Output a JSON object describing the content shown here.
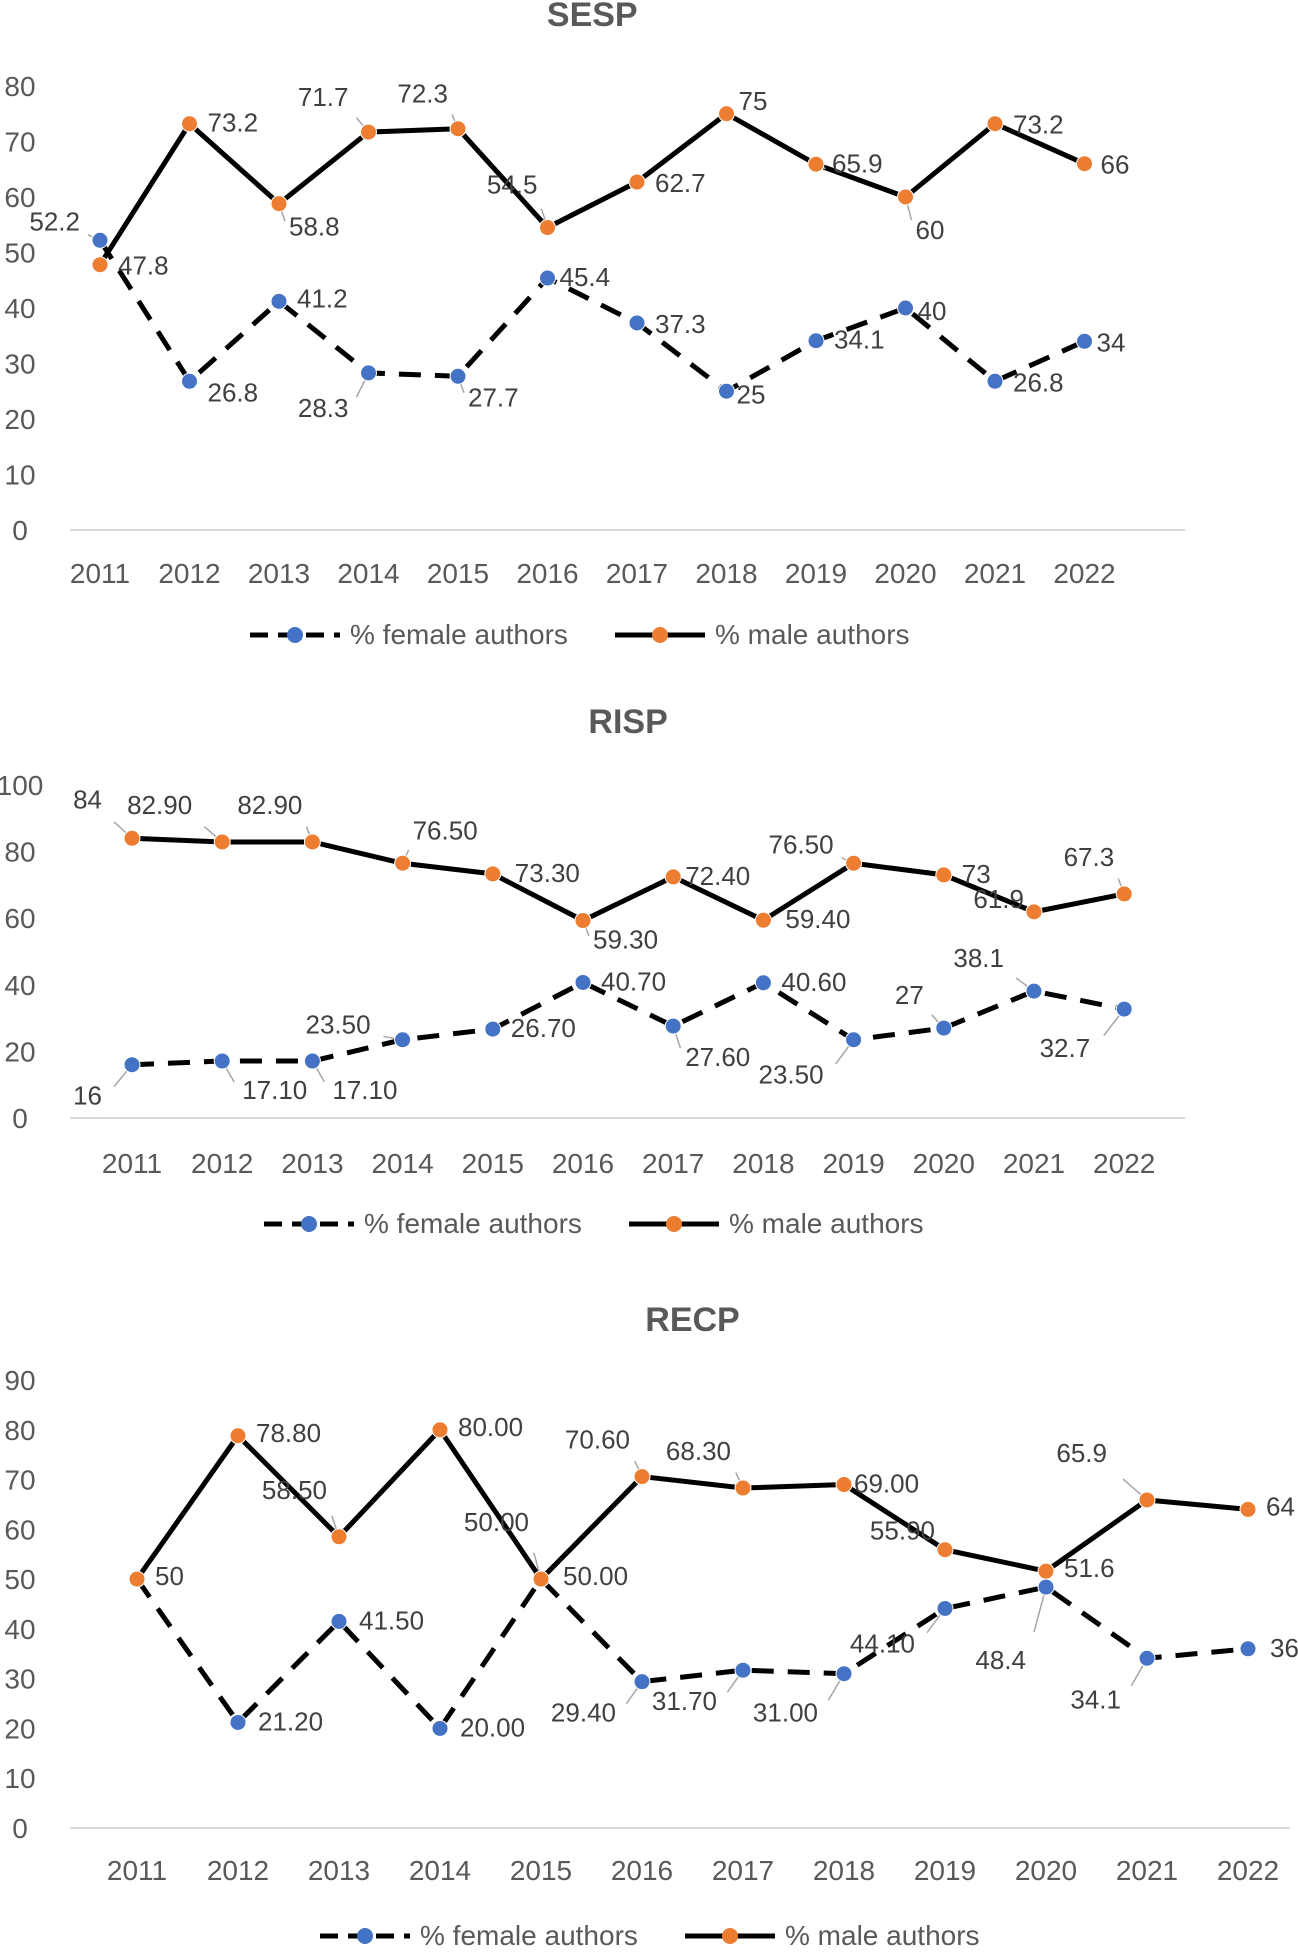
{
  "chart_data": [
    {
      "type": "line",
      "title": "SESP",
      "categories": [
        "2011",
        "2012",
        "2013",
        "2014",
        "2015",
        "2016",
        "2017",
        "2018",
        "2019",
        "2020",
        "2021",
        "2022"
      ],
      "ylim": [
        0,
        80
      ],
      "yticks": [
        "0",
        "10",
        "20",
        "30",
        "40",
        "50",
        "60",
        "70",
        "80"
      ],
      "series": [
        {
          "name": "% female authors",
          "style": "dashed",
          "marker_color": "#4472C4",
          "values": [
            52.2,
            26.8,
            41.2,
            28.3,
            27.7,
            45.4,
            37.3,
            25,
            34.1,
            40,
            26.8,
            34
          ],
          "labels": [
            "52.2",
            "26.8",
            "41.2",
            "28.3",
            "27.7",
            "45.4",
            "37.3",
            "25",
            "34.1",
            "40",
            "26.8",
            "34"
          ]
        },
        {
          "name": "% male authors",
          "style": "solid",
          "marker_color": "#ED7D31",
          "values": [
            47.8,
            73.2,
            58.8,
            71.7,
            72.3,
            54.5,
            62.7,
            75,
            65.9,
            60,
            73.2,
            66
          ],
          "labels": [
            "47.8",
            "73.2",
            "58.8",
            "71.7",
            "72.3",
            "54.5",
            "62.7",
            "75",
            "65.9",
            "60",
            "73.2",
            "66"
          ]
        }
      ]
    },
    {
      "type": "line",
      "title": "RISP",
      "categories": [
        "2011",
        "2012",
        "2013",
        "2014",
        "2015",
        "2016",
        "2017",
        "2018",
        "2019",
        "2020",
        "2021",
        "2022"
      ],
      "ylim": [
        0,
        100
      ],
      "yticks": [
        "0",
        "20",
        "40",
        "60",
        "80",
        "100"
      ],
      "series": [
        {
          "name": "% female authors",
          "style": "dashed",
          "marker_color": "#4472C4",
          "values": [
            16,
            17.1,
            17.1,
            23.5,
            26.7,
            40.7,
            27.6,
            40.6,
            23.5,
            27,
            38.1,
            32.7
          ],
          "labels": [
            "16",
            "17.10",
            "17.10",
            "23.50",
            "26.70",
            "40.70",
            "27.60",
            "40.60",
            "23.50",
            "27",
            "38.1",
            "32.7"
          ]
        },
        {
          "name": "% male authors",
          "style": "solid",
          "marker_color": "#ED7D31",
          "values": [
            84,
            82.9,
            82.9,
            76.5,
            73.3,
            59.3,
            72.4,
            59.4,
            76.5,
            73,
            61.9,
            67.3
          ],
          "labels": [
            "84",
            "82.90",
            "82.90",
            "76.50",
            "73.30",
            "59.30",
            "72.40",
            "59.40",
            "76.50",
            "73",
            "61.9",
            "67.3"
          ]
        }
      ]
    },
    {
      "type": "line",
      "title": "RECP",
      "categories": [
        "2011",
        "2012",
        "2013",
        "2014",
        "2015",
        "2016",
        "2017",
        "2018",
        "2019",
        "2020",
        "2021",
        "2022"
      ],
      "ylim": [
        0,
        90
      ],
      "yticks": [
        "0",
        "10",
        "20",
        "30",
        "40",
        "50",
        "60",
        "70",
        "80",
        "90"
      ],
      "series": [
        {
          "name": "% female authors",
          "style": "dashed",
          "marker_color": "#4472C4",
          "values": [
            50,
            21.2,
            41.5,
            20,
            50,
            29.4,
            31.7,
            31,
            44.1,
            48.4,
            34.1,
            36
          ],
          "labels": [
            "",
            "21.20",
            "41.50",
            "20.00",
            "50.00",
            "29.40",
            "31.70",
            "31.00",
            "44.10",
            "48.4",
            "34.1",
            "36"
          ]
        },
        {
          "name": "% male authors",
          "style": "solid",
          "marker_color": "#ED7D31",
          "values": [
            50,
            78.8,
            58.5,
            80,
            50,
            70.6,
            68.3,
            69,
            55.9,
            51.6,
            65.9,
            64
          ],
          "labels": [
            "50",
            "78.80",
            "58.50",
            "80.00",
            "50.00",
            "70.60",
            "68.30",
            "69.00",
            "55.90",
            "51.6",
            "65.9",
            "64"
          ]
        }
      ]
    }
  ]
}
